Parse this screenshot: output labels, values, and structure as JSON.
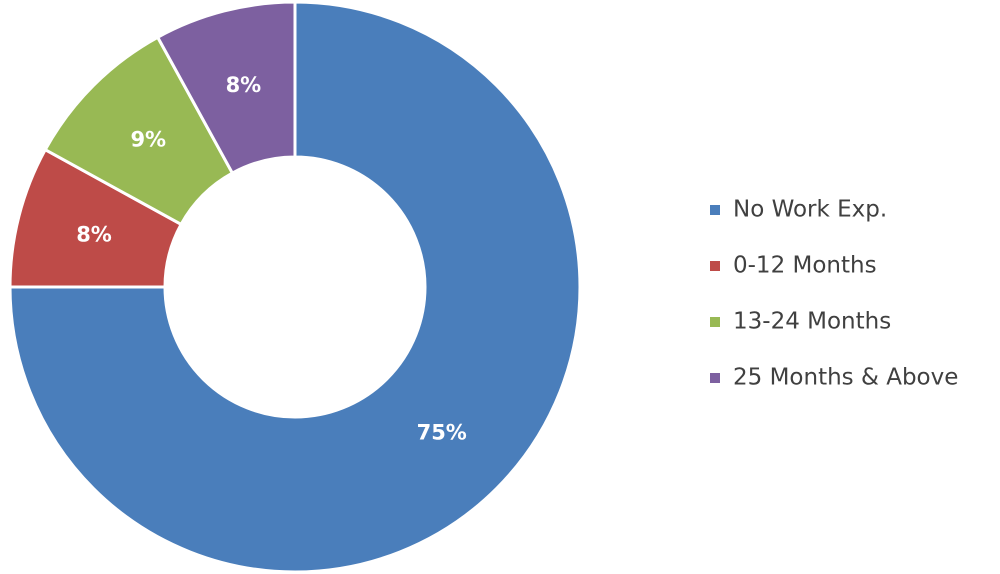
{
  "chart_data": {
    "type": "donut",
    "categories": [
      "No Work Exp.",
      "0-12 Months",
      "13-24 Months",
      "25 Months & Above"
    ],
    "values": [
      75,
      8,
      9,
      8
    ],
    "value_labels": [
      "75%",
      "8%",
      "9%",
      "8%"
    ],
    "colors": [
      "#4a7ebb",
      "#be4b48",
      "#98b954",
      "#7d60a0"
    ],
    "legend": "right"
  }
}
